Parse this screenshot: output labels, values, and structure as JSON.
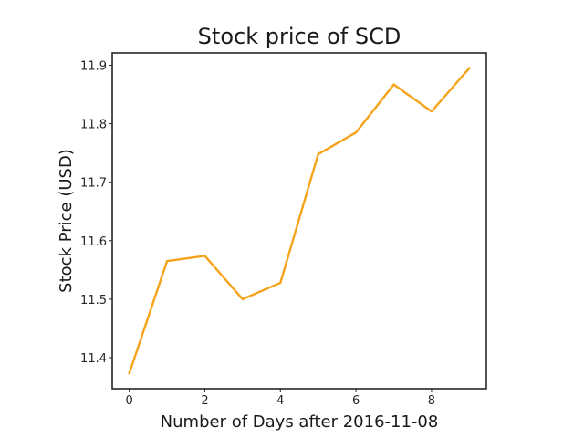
{
  "chart_data": {
    "type": "line",
    "title": "Stock price of SCD",
    "xlabel": "Number of Days after 2016-11-08",
    "ylabel": "Stock Price (USD)",
    "x": [
      0,
      1,
      2,
      3,
      4,
      5,
      6,
      7,
      8,
      9
    ],
    "series": [
      {
        "values": [
          11.373,
          11.565,
          11.574,
          11.5,
          11.528,
          11.748,
          11.785,
          11.867,
          11.821,
          11.895
        ],
        "color": "#f5a31a"
      }
    ],
    "xlim": [
      -0.45,
      9.45
    ],
    "ylim": [
      11.347,
      11.921
    ],
    "xticks": [
      0,
      2,
      4,
      6,
      8
    ],
    "xtick_labels": [
      "0",
      "2",
      "4",
      "6",
      "8"
    ],
    "yticks": [
      11.4,
      11.5,
      11.6,
      11.7,
      11.8,
      11.9
    ],
    "ytick_labels": [
      "11.4",
      "11.5",
      "11.6",
      "11.7",
      "11.8",
      "11.9"
    ],
    "grid": false,
    "legend": "none"
  }
}
